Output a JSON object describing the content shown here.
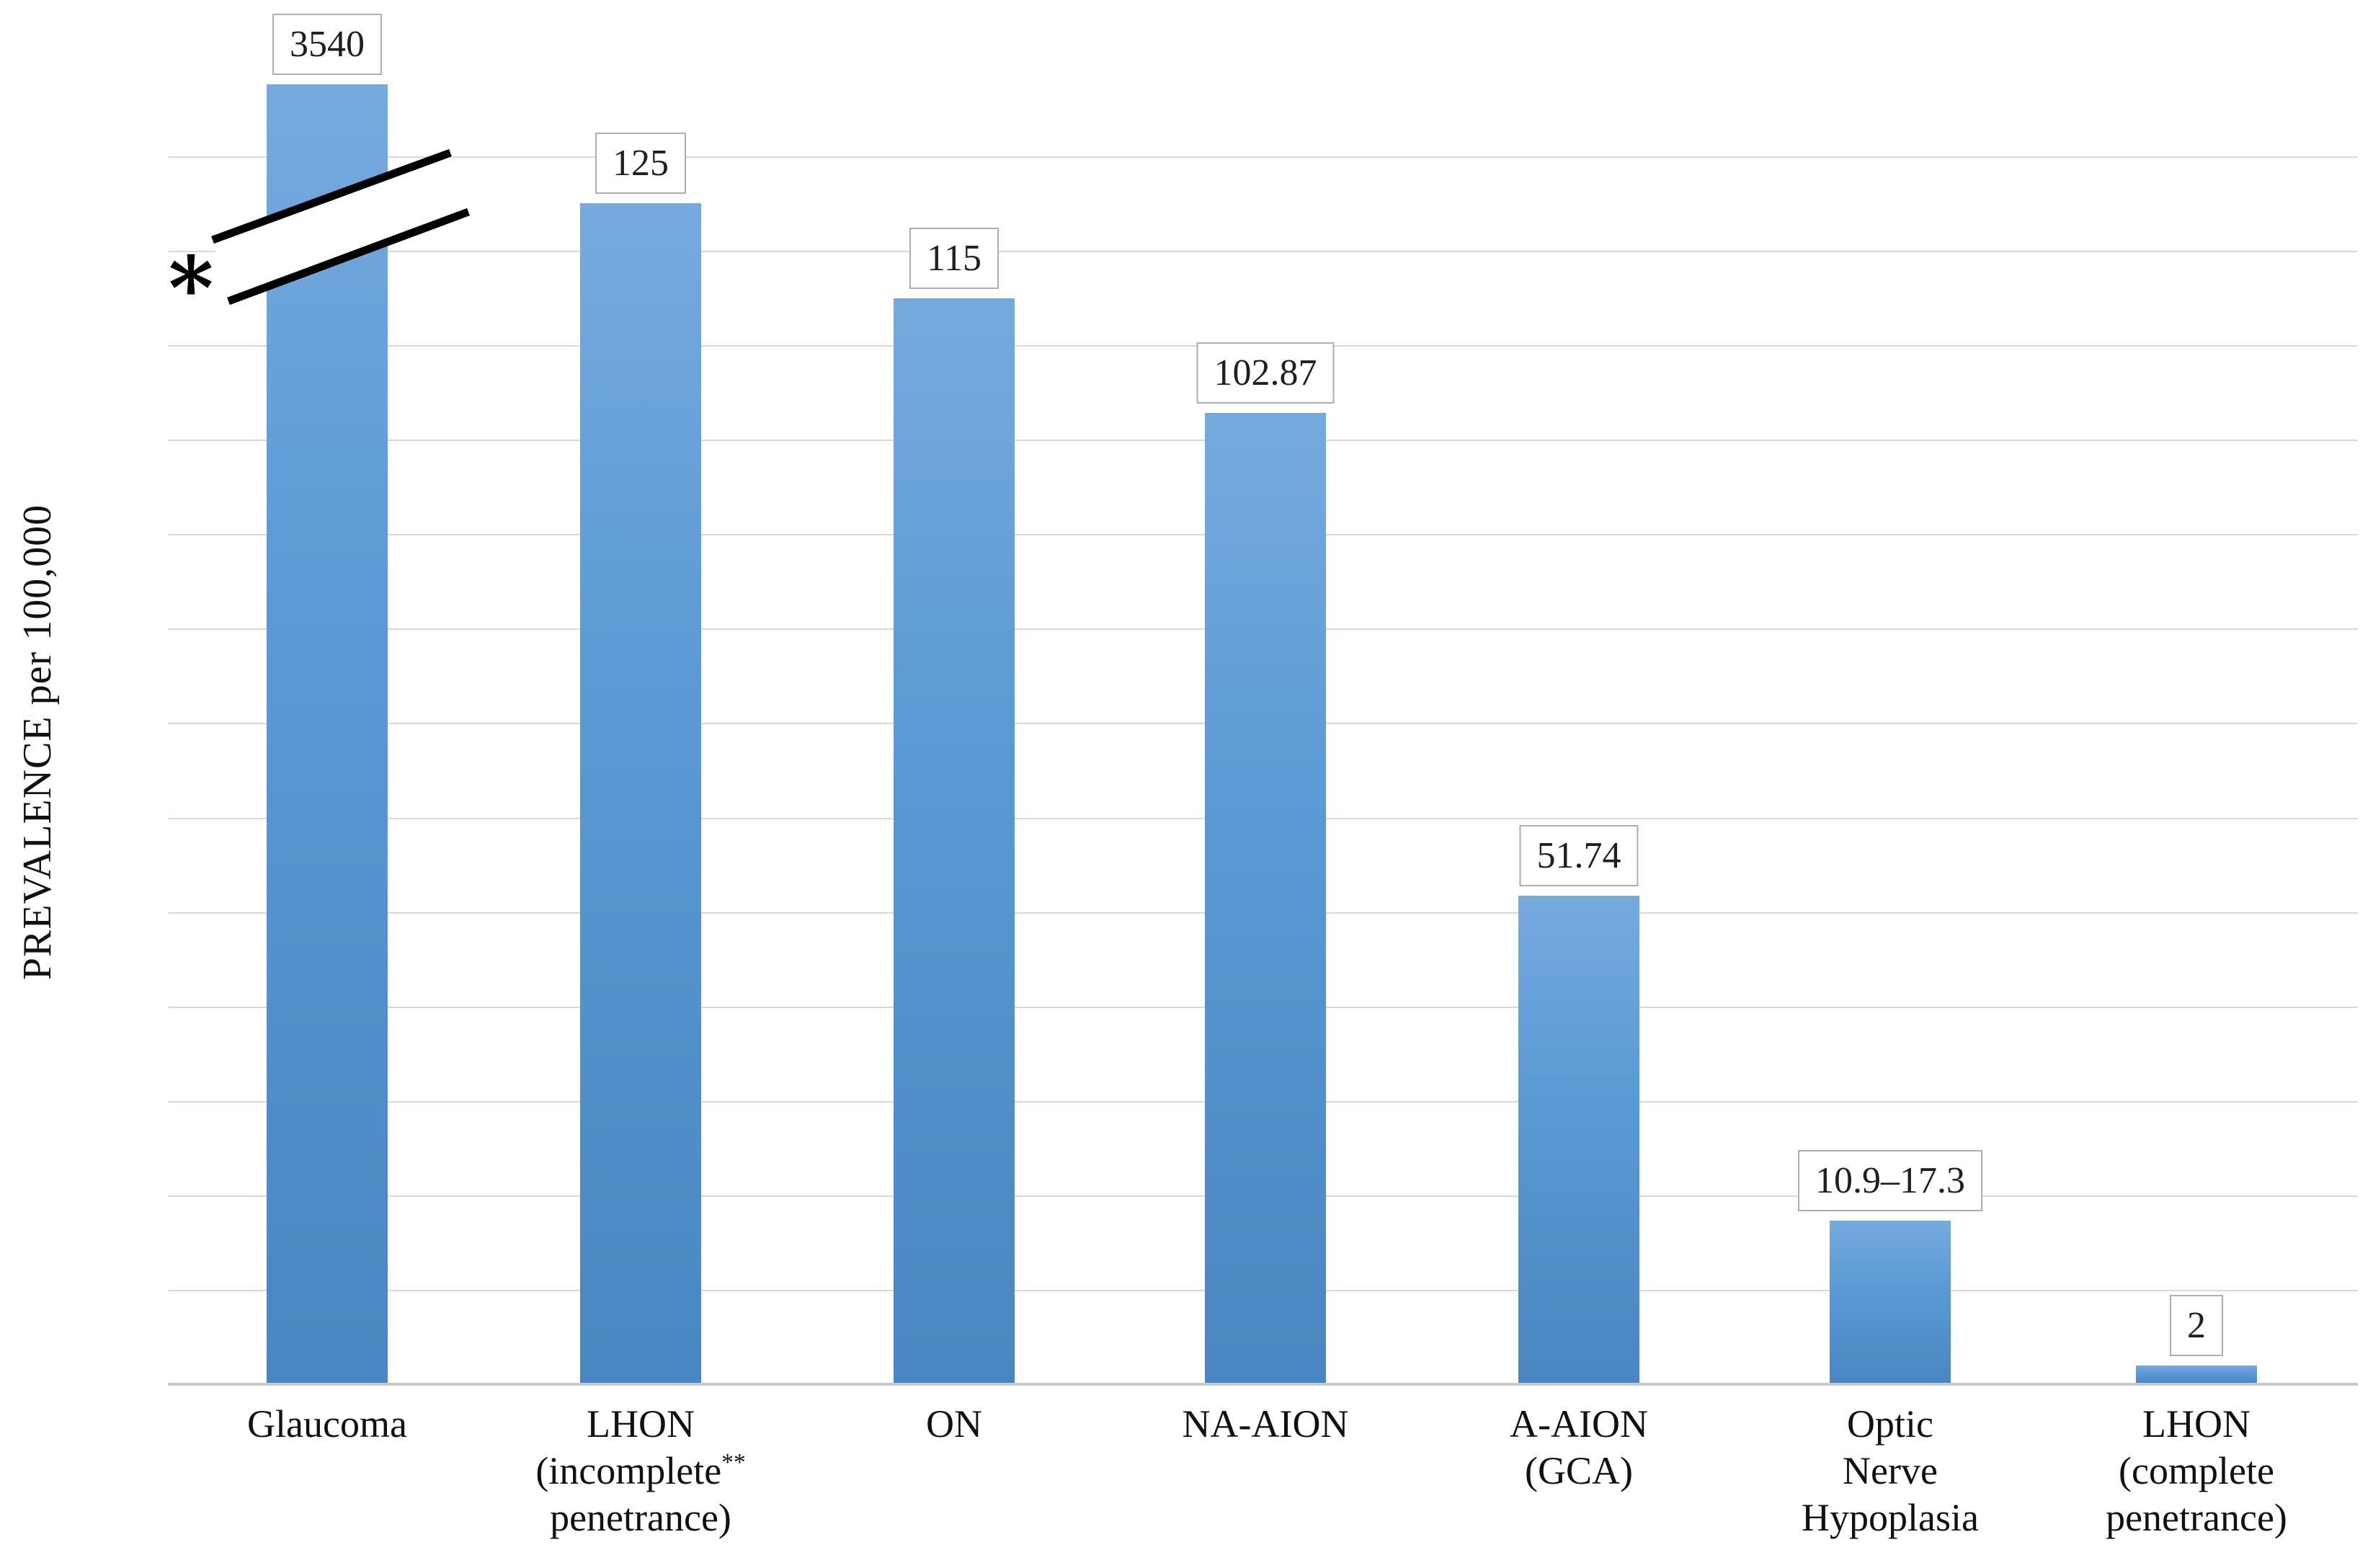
{
  "page": {
    "background": "#FFFFFF"
  },
  "y_axis": {
    "title": "PREVALENCE per 100,000",
    "max_displayed": 130,
    "gridline_step": 10,
    "tick_labels_visible": false
  },
  "axis_break": {
    "asterisk": "*",
    "description": "broken y-axis marked by two diagonal lines across the Glaucoma bar"
  },
  "chart_data": {
    "type": "bar",
    "title": "",
    "xlabel": "",
    "ylabel": "PREVALENCE per 100,000",
    "ylim": [
      0,
      130
    ],
    "grid": true,
    "legend_position": "none",
    "bar_color": "#5B9BD5",
    "categories": [
      "Glaucoma",
      "LHON (incomplete** penetrance)",
      "ON",
      "NA-AION",
      "A-AION (GCA)",
      "Optic Nerve Hypoplasia",
      "LHON (complete penetrance)"
    ],
    "values": [
      "3540",
      "125",
      "115",
      "102.87",
      "51.74",
      "10.9–17.3",
      "2"
    ],
    "notes": "Glaucoma bar (3540) is truncated by an axis break marked with * and **"
  },
  "bars": [
    {
      "value_label": "3540",
      "drawn_value": 137.6,
      "lines": [
        {
          "text": "Glaucoma"
        }
      ]
    },
    {
      "value_label": "125",
      "drawn_value": 125,
      "lines": [
        {
          "text": "LHON"
        },
        {
          "text": "(incomplete",
          "sup": "**"
        },
        {
          "text": "penetrance)"
        }
      ]
    },
    {
      "value_label": "115",
      "drawn_value": 115,
      "lines": [
        {
          "text": "ON"
        }
      ]
    },
    {
      "value_label": "102.87",
      "drawn_value": 102.87,
      "lines": [
        {
          "text": "NA-AION"
        }
      ]
    },
    {
      "value_label": "51.74",
      "drawn_value": 51.74,
      "lines": [
        {
          "text": "A-AION"
        },
        {
          "text": "(GCA)"
        }
      ]
    },
    {
      "value_label": "10.9–17.3",
      "drawn_value": 17.3,
      "lines": [
        {
          "text": "Optic"
        },
        {
          "text": "Nerve"
        },
        {
          "text": "Hypoplasia"
        }
      ]
    },
    {
      "value_label": "2",
      "drawn_value": 2,
      "lines": [
        {
          "text": "LHON"
        },
        {
          "text": "(complete"
        },
        {
          "text": "penetrance)"
        }
      ]
    }
  ],
  "colors": {
    "bar_top": "#76AADF",
    "bar_bottom": "#4A86C1",
    "gridline": "#D9D9D9",
    "axis_line": "#C9C9C9",
    "label_box_border": "#AEAEAE",
    "break_line": "#000000",
    "text": "#111111"
  }
}
